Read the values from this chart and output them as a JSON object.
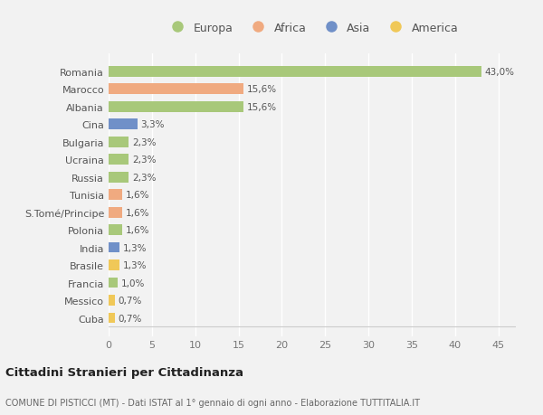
{
  "categories": [
    "Romania",
    "Marocco",
    "Albania",
    "Cina",
    "Bulgaria",
    "Ucraina",
    "Russia",
    "Tunisia",
    "S.Tomé/Principe",
    "Polonia",
    "India",
    "Brasile",
    "Francia",
    "Messico",
    "Cuba"
  ],
  "values": [
    43.0,
    15.6,
    15.6,
    3.3,
    2.3,
    2.3,
    2.3,
    1.6,
    1.6,
    1.6,
    1.3,
    1.3,
    1.0,
    0.7,
    0.7
  ],
  "labels": [
    "43,0%",
    "15,6%",
    "15,6%",
    "3,3%",
    "2,3%",
    "2,3%",
    "2,3%",
    "1,6%",
    "1,6%",
    "1,6%",
    "1,3%",
    "1,3%",
    "1,0%",
    "0,7%",
    "0,7%"
  ],
  "continents": [
    "Europa",
    "Africa",
    "Europa",
    "Asia",
    "Europa",
    "Europa",
    "Europa",
    "Africa",
    "Africa",
    "Europa",
    "Asia",
    "America",
    "Europa",
    "America",
    "America"
  ],
  "colors": {
    "Europa": "#a8c87a",
    "Africa": "#f0aa80",
    "Asia": "#7090c8",
    "America": "#f0c858"
  },
  "xlim": [
    0,
    47
  ],
  "xticks": [
    0,
    5,
    10,
    15,
    20,
    25,
    30,
    35,
    40,
    45
  ],
  "background_color": "#f2f2f2",
  "plot_bg_color": "#f2f2f2",
  "grid_color": "#ffffff",
  "title": "Cittadini Stranieri per Cittadinanza",
  "subtitle": "COMUNE DI PISTICCI (MT) - Dati ISTAT al 1° gennaio di ogni anno - Elaborazione TUTTITALIA.IT",
  "bar_height": 0.6,
  "legend_order": [
    "Europa",
    "Africa",
    "Asia",
    "America"
  ]
}
